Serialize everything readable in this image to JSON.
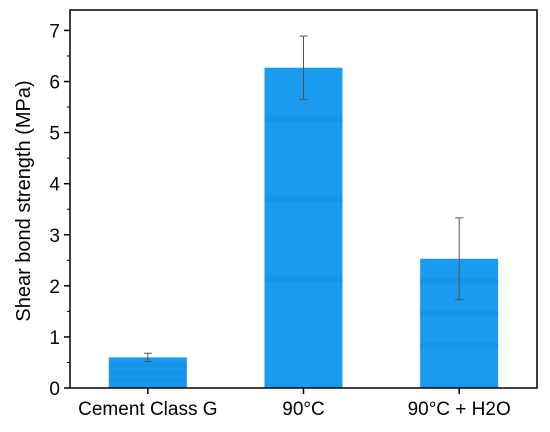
{
  "chart_data": {
    "type": "bar",
    "categories": [
      "Cement Class G",
      "90°C",
      "90°C + H2O"
    ],
    "values": [
      0.6,
      6.27,
      2.53
    ],
    "errors": [
      0.08,
      0.62,
      0.8
    ],
    "ylabel": "Shear bond strength (MPa)",
    "xlabel": "",
    "ylim": [
      0,
      7.4
    ],
    "yticks": [
      0,
      1,
      2,
      3,
      4,
      5,
      6,
      7
    ],
    "bar_color": "#1a9bf0",
    "bar_stripe_color": "#0f8ee6",
    "error_bar_color": "#555555",
    "grid": false,
    "legend": "none"
  }
}
